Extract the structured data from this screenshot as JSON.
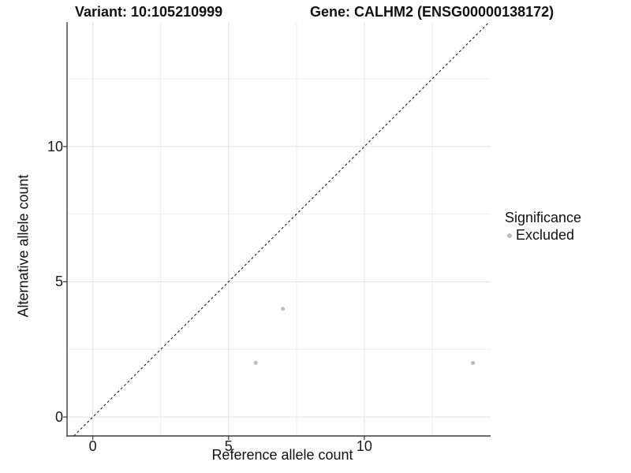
{
  "chart_data": {
    "type": "scatter",
    "title_left": "Variant: 10:105210999",
    "title_right": "Gene: CALHM2 (ENSG00000138172)",
    "xlabel": "Reference allele count",
    "ylabel": "Alternative allele count",
    "xlim": [
      -0.95,
      14.65
    ],
    "ylim": [
      -0.7,
      14.6
    ],
    "x_ticks": [
      0,
      5,
      10
    ],
    "y_ticks": [
      0,
      5,
      10
    ],
    "x_minor_gridlines": [
      2.5,
      7.5,
      12.5
    ],
    "y_minor_gridlines": [
      2.5,
      7.5,
      12.5
    ],
    "grid": "major-and-minor",
    "legend_position": "right",
    "identity_line": {
      "style": "dashed",
      "from": -0.7,
      "to": 14.6,
      "color": "#1a1a1a"
    },
    "series": [
      {
        "name": "Excluded",
        "color": "#bcbcbc",
        "points": [
          {
            "x": 6,
            "y": 2
          },
          {
            "x": 7,
            "y": 4
          },
          {
            "x": 14,
            "y": 2
          }
        ]
      }
    ],
    "legend": {
      "title": "Significance",
      "items": [
        {
          "label": "Excluded",
          "color": "#bcbcbc"
        }
      ]
    }
  },
  "colors": {
    "background": "#ffffff",
    "major_gridline": "#e0e0e0",
    "minor_gridline": "#ededed",
    "axis_line": "#3c3c3c",
    "tick_mark": "#333333",
    "point": "#bcbcbc",
    "text": "#111111"
  }
}
